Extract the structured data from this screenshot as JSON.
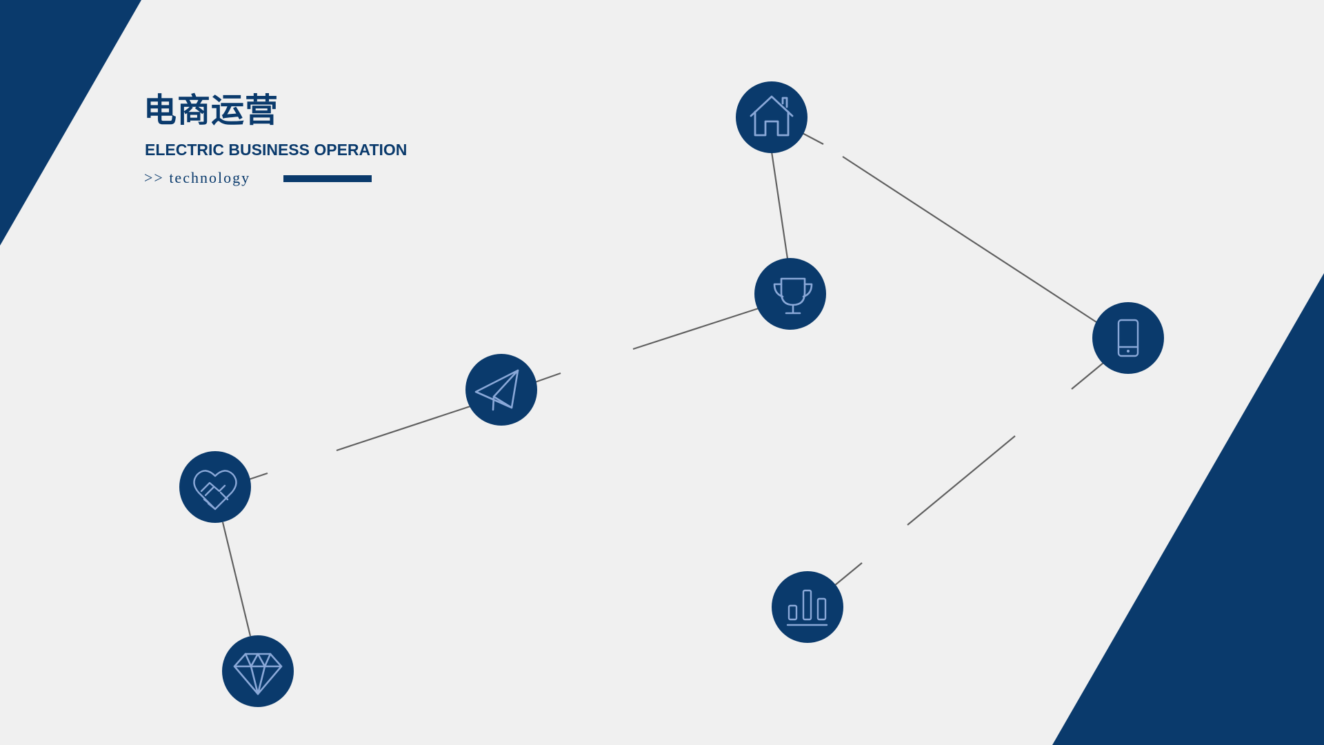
{
  "header": {
    "title": "电商运营",
    "subtitle": "ELECTRIC BUSINESS OPERATION",
    "tagline": ">> technology"
  },
  "colors": {
    "navy": "#0a3a6c",
    "icon_stroke": "#8aa8d8",
    "line": "#606060",
    "background": "#f0f0f0"
  },
  "nodes": [
    {
      "id": "home",
      "icon": "home-icon"
    },
    {
      "id": "trophy",
      "icon": "trophy-icon"
    },
    {
      "id": "phone",
      "icon": "smartphone-icon"
    },
    {
      "id": "paper-plane",
      "icon": "paper-plane-icon"
    },
    {
      "id": "handshake",
      "icon": "handshake-heart-icon"
    },
    {
      "id": "diamond",
      "icon": "diamond-icon"
    },
    {
      "id": "bar-chart",
      "icon": "bar-chart-icon"
    }
  ]
}
